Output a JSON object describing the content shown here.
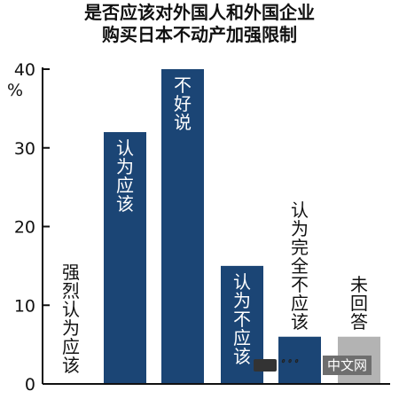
{
  "chart_data": {
    "type": "bar",
    "title": "是否应该对外国人和外国企业",
    "subtitle": "购买日本不动产加强限制",
    "ylabel": "%",
    "ylim": [
      0,
      40
    ],
    "yticks": [
      0,
      10,
      20,
      30,
      40
    ],
    "grid": false,
    "categories": [
      "强烈认为应该",
      "认为应该",
      "不好说",
      "认为不应该",
      "认为完全不应该",
      "未回答"
    ],
    "values": [
      0,
      32,
      40,
      15,
      6,
      6
    ],
    "colors": [
      "#1b4575",
      "#1b4575",
      "#1b4575",
      "#1b4575",
      "#1b4575",
      "#b3b3b3"
    ],
    "label_color_inside": "#ffffff",
    "label_color_outside": "#111111"
  },
  "watermark": {
    "text": "中文网"
  }
}
